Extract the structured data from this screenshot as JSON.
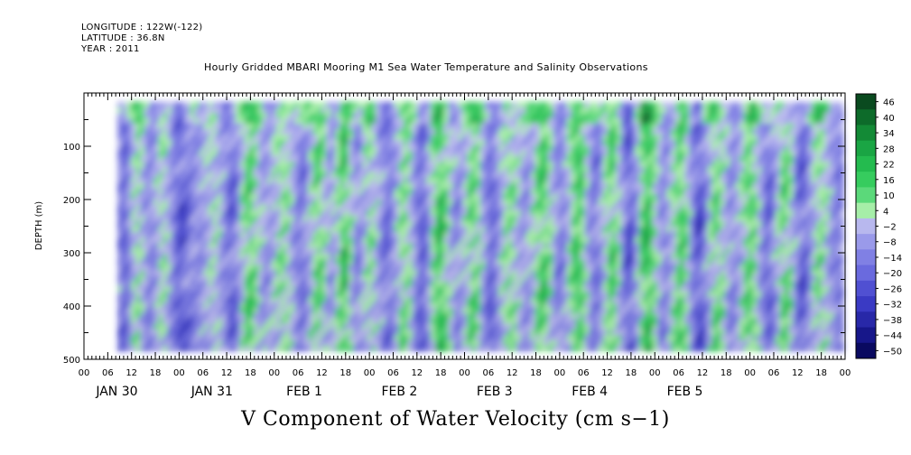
{
  "header": {
    "longitude": "LONGITUDE : 122W(-122)",
    "latitude": "LATITUDE : 36.8N",
    "year": "YEAR : 2011"
  },
  "chart_data": {
    "type": "heatmap",
    "title": "Hourly Gridded MBARI Mooring M1 Sea Water Temperature and Salinity Observations",
    "xlabel": "V Component of Water Velocity (cm s−1)",
    "ylabel": "DEPTH (m)",
    "ylim": [
      500,
      0
    ],
    "y_ticks": [
      100,
      200,
      300,
      400,
      500
    ],
    "y_tick_labels": [
      "100",
      "200",
      "300",
      "400",
      "500"
    ],
    "x_hour_labels": [
      "00",
      "06",
      "12",
      "18",
      "00",
      "06",
      "12",
      "18",
      "00",
      "06",
      "12",
      "18",
      "00",
      "06",
      "12",
      "18",
      "00",
      "06",
      "12",
      "18",
      "00",
      "06",
      "12",
      "18",
      "00",
      "06",
      "12",
      "18",
      "00",
      "06",
      "12",
      "18",
      "00"
    ],
    "x_date_labels": [
      "JAN 30",
      "JAN 31",
      "FEB  1",
      "FEB  2",
      "FEB  3",
      "FEB  4",
      "FEB  5"
    ],
    "colorbar_labels": [
      "46",
      "40",
      "34",
      "28",
      "22",
      "16",
      "10",
      "4",
      "−2",
      "−8",
      "−14",
      "−20",
      "−26",
      "−32",
      "−38",
      "−44",
      "−50"
    ],
    "colorbar_colors": [
      "#0a4a1f",
      "#0d6b2a",
      "#138a36",
      "#1aa544",
      "#24bb4f",
      "#36cc5e",
      "#5bd97a",
      "#a6eea8",
      "#b8b8ee",
      "#9a9aea",
      "#8080e4",
      "#6a6ade",
      "#5050d2",
      "#3a3ac4",
      "#2828a8",
      "#17178a",
      "#0a0a60"
    ],
    "stripe_hint": [
      {
        "x": 0.5,
        "v": -20
      },
      {
        "x": 2,
        "v": 8
      },
      {
        "x": 3.5,
        "v": -10
      },
      {
        "x": 5,
        "v": 6
      },
      {
        "x": 7,
        "v": -22
      },
      {
        "x": 9,
        "v": -8
      },
      {
        "x": 11,
        "v": 4
      },
      {
        "x": 13,
        "v": -18
      },
      {
        "x": 15,
        "v": 16
      },
      {
        "x": 17,
        "v": -6
      },
      {
        "x": 19,
        "v": 10
      },
      {
        "x": 21,
        "v": -14
      },
      {
        "x": 23,
        "v": 14
      },
      {
        "x": 24.5,
        "v": -4
      },
      {
        "x": 26,
        "v": 20
      },
      {
        "x": 27.5,
        "v": -10
      },
      {
        "x": 29,
        "v": 8
      },
      {
        "x": 31,
        "v": -16
      },
      {
        "x": 33,
        "v": 12
      },
      {
        "x": 35,
        "v": -20
      },
      {
        "x": 37,
        "v": 22
      },
      {
        "x": 39,
        "v": -8
      },
      {
        "x": 41,
        "v": 14
      },
      {
        "x": 43,
        "v": -18
      },
      {
        "x": 45,
        "v": 10
      },
      {
        "x": 47,
        "v": -6
      },
      {
        "x": 49,
        "v": 18
      },
      {
        "x": 51,
        "v": -12
      },
      {
        "x": 53,
        "v": 20
      },
      {
        "x": 55,
        "v": -14
      },
      {
        "x": 57,
        "v": 16
      },
      {
        "x": 59,
        "v": -22
      },
      {
        "x": 61,
        "v": 24
      },
      {
        "x": 63,
        "v": -10
      },
      {
        "x": 65,
        "v": 18
      },
      {
        "x": 67,
        "v": -24
      },
      {
        "x": 69,
        "v": 12
      },
      {
        "x": 71,
        "v": -8
      },
      {
        "x": 73,
        "v": 16
      },
      {
        "x": 75,
        "v": -18
      },
      {
        "x": 77,
        "v": 14
      },
      {
        "x": 79,
        "v": -20
      },
      {
        "x": 81,
        "v": 10
      },
      {
        "x": 83,
        "v": -12
      }
    ]
  }
}
